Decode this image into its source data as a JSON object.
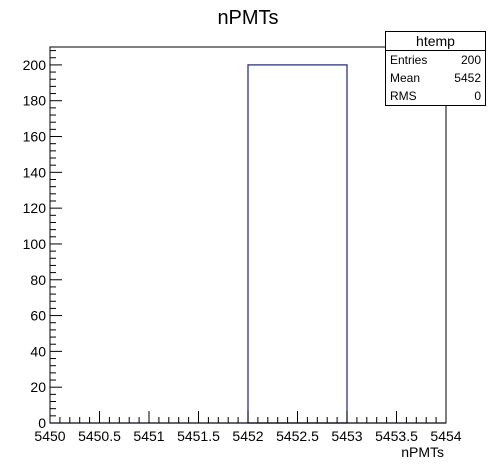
{
  "chart_data": {
    "type": "bar",
    "title": "nPMTs",
    "xlabel": "nPMTs",
    "ylabel": "",
    "xlim": [
      5450,
      5454
    ],
    "ylim": [
      0,
      210
    ],
    "x_ticks": [
      "5450",
      "5450.5",
      "5451",
      "5451.5",
      "5452",
      "5452.5",
      "5453",
      "5453.5",
      "5454"
    ],
    "y_ticks": [
      "0",
      "20",
      "40",
      "60",
      "80",
      "100",
      "120",
      "140",
      "160",
      "180",
      "200"
    ],
    "bins": [
      {
        "x_low": 5452,
        "x_high": 5453,
        "value": 200
      }
    ],
    "line_color": "#1a237e"
  },
  "stats_box": {
    "title": "htemp",
    "rows": [
      {
        "label": "Entries",
        "value": "200"
      },
      {
        "label": "Mean",
        "value": "5452"
      },
      {
        "label": "RMS",
        "value": "0"
      }
    ]
  }
}
